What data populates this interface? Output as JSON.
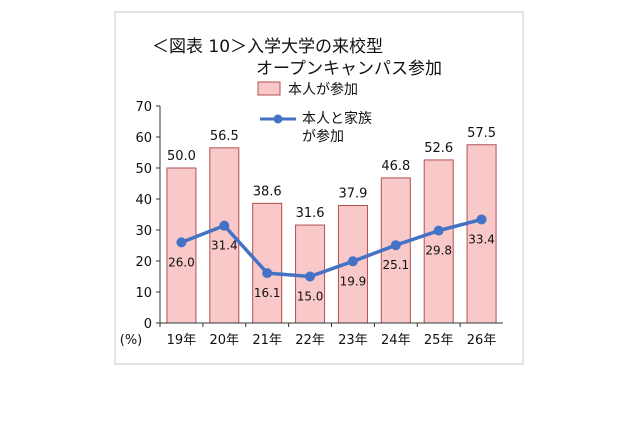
{
  "chart_data": {
    "type": "bar",
    "title_line1": "＜図表 10＞入学大学の来校型",
    "title_line2": "オープンキャンパス参加",
    "unit_label": "(%)",
    "categories": [
      "19年",
      "20年",
      "21年",
      "22年",
      "23年",
      "24年",
      "25年",
      "26年"
    ],
    "series": [
      {
        "name": "本人が参加",
        "kind": "bar",
        "color": "#f9c8c8",
        "values": [
          50.0,
          56.5,
          38.6,
          31.6,
          37.9,
          46.8,
          52.6,
          57.5
        ],
        "labels": [
          "50.0",
          "56.5",
          "38.6",
          "31.6",
          "37.9",
          "46.8",
          "52.6",
          "57.5"
        ]
      },
      {
        "name_line1": "本人と家族",
        "name_line2": "が参加",
        "kind": "line",
        "color": "#4472c4",
        "values": [
          26.0,
          31.4,
          16.1,
          15.0,
          19.9,
          25.1,
          29.8,
          33.4
        ],
        "labels": [
          "26.0",
          "31.4",
          "16.1",
          "15.0",
          "19.9",
          "25.1",
          "29.8",
          "33.4"
        ]
      }
    ],
    "ylim": [
      0,
      70
    ],
    "yticks": [
      "0",
      "10",
      "20",
      "30",
      "40",
      "50",
      "60",
      "70"
    ],
    "grid": false,
    "legend_position": "top-right"
  }
}
